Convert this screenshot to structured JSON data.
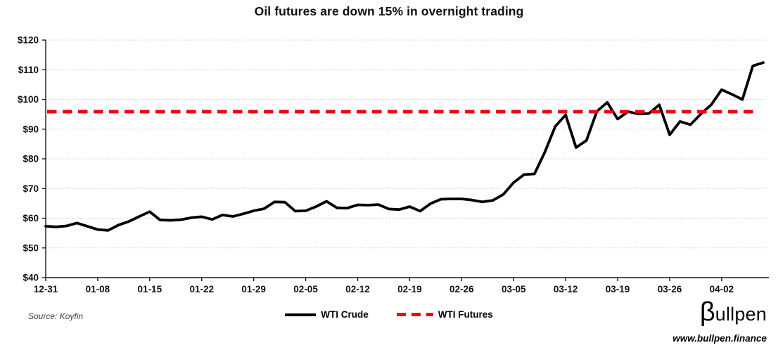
{
  "title": "Oil futures are down 15% in overnight trading",
  "source_note": "Source: Koyfin",
  "brand": {
    "logo_beta": "β",
    "logo_rest": "ullpen",
    "website": "www.bullpen.finance"
  },
  "legend": {
    "items": [
      {
        "label": "WTI Crude",
        "style": "solid",
        "color": "#000000"
      },
      {
        "label": "WTI Futures",
        "style": "dashed",
        "color": "#ee0202"
      }
    ]
  },
  "chart_data": {
    "type": "line",
    "title": "Oil futures are down 15% in overnight trading",
    "xlabel": "",
    "ylabel": "",
    "ylim": [
      40,
      120
    ],
    "ytick_step": 10,
    "ytick_prefix": "$",
    "xtick_every": 5,
    "grid": "dotted-horizontal",
    "legend_position": "bottom-center",
    "x": [
      "12-31",
      "01-02",
      "01-03",
      "01-06",
      "01-07",
      "01-08",
      "01-09",
      "01-10",
      "01-13",
      "01-14",
      "01-15",
      "01-16",
      "01-17",
      "01-20",
      "01-21",
      "01-22",
      "01-23",
      "01-24",
      "01-27",
      "01-28",
      "01-29",
      "01-30",
      "01-31",
      "02-03",
      "02-04",
      "02-05",
      "02-06",
      "02-07",
      "02-10",
      "02-11",
      "02-12",
      "02-13",
      "02-14",
      "02-17",
      "02-18",
      "02-19",
      "02-20",
      "02-21",
      "02-24",
      "02-25",
      "02-26",
      "02-27",
      "02-28",
      "03-03",
      "03-04",
      "03-05",
      "03-06",
      "03-07",
      "03-10",
      "03-11",
      "03-12",
      "03-13",
      "03-14",
      "03-17",
      "03-18",
      "03-19",
      "03-20",
      "03-21",
      "03-24",
      "03-25",
      "03-26",
      "03-27",
      "03-28",
      "03-31",
      "04-01",
      "04-02",
      "04-03",
      "04-04",
      "04-07",
      "04-08"
    ],
    "series": [
      {
        "name": "WTI Crude",
        "type": "line",
        "style": "solid",
        "color": "#000000",
        "values": [
          57.3,
          57.1,
          57.4,
          58.4,
          57.3,
          56.2,
          55.9,
          57.7,
          58.9,
          60.6,
          62.2,
          59.4,
          59.3,
          59.5,
          60.2,
          60.5,
          59.6,
          61.1,
          60.6,
          61.5,
          62.5,
          63.2,
          65.5,
          65.4,
          62.4,
          62.5,
          63.9,
          65.7,
          63.5,
          63.4,
          64.5,
          64.4,
          64.6,
          63.1,
          62.9,
          63.9,
          62.4,
          64.9,
          66.4,
          66.5,
          66.5,
          66.1,
          65.5,
          66.0,
          68.0,
          72.0,
          74.7,
          74.9,
          82.3,
          90.9,
          94.8,
          83.8,
          86.2,
          96.0,
          99.0,
          93.4,
          95.9,
          95.1,
          95.3,
          98.2,
          88.1,
          92.6,
          91.5,
          95.1,
          98.2,
          103.3,
          101.7,
          100.0,
          111.3,
          112.4
        ]
      },
      {
        "name": "WTI Futures",
        "type": "constant-line",
        "style": "dashed",
        "color": "#ee0202",
        "value": 95.9
      }
    ]
  }
}
